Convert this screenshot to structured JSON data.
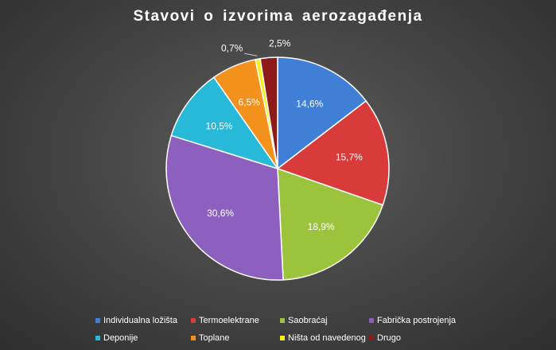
{
  "chart_data": {
    "type": "pie",
    "title": "Stavovi  o izvorima  aerozagađenja",
    "slices": [
      {
        "name": "Individualna ložišta",
        "value": 14.6,
        "label": "14,6%",
        "color": "#3f7fd6"
      },
      {
        "name": "Termoelektrane",
        "value": 15.7,
        "label": "15,7%",
        "color": "#d93b3b"
      },
      {
        "name": "Saobraćaj",
        "value": 18.9,
        "label": "18,9%",
        "color": "#9bc43c"
      },
      {
        "name": "Fabrička postrojenja",
        "value": 30.6,
        "label": "30,6%",
        "color": "#8d60bf"
      },
      {
        "name": "Deponije",
        "value": 10.5,
        "label": "10,5%",
        "color": "#28b9d9"
      },
      {
        "name": "Toplane",
        "value": 6.5,
        "label": "6,5%",
        "color": "#f2921c"
      },
      {
        "name": "Ništa od navedenog",
        "value": 0.7,
        "label": "0,7%",
        "color": "#f5ef1a"
      },
      {
        "name": "Drugo",
        "value": 2.5,
        "label": "2,5%",
        "color": "#8e1a1a"
      }
    ],
    "legend_position": "bottom"
  }
}
